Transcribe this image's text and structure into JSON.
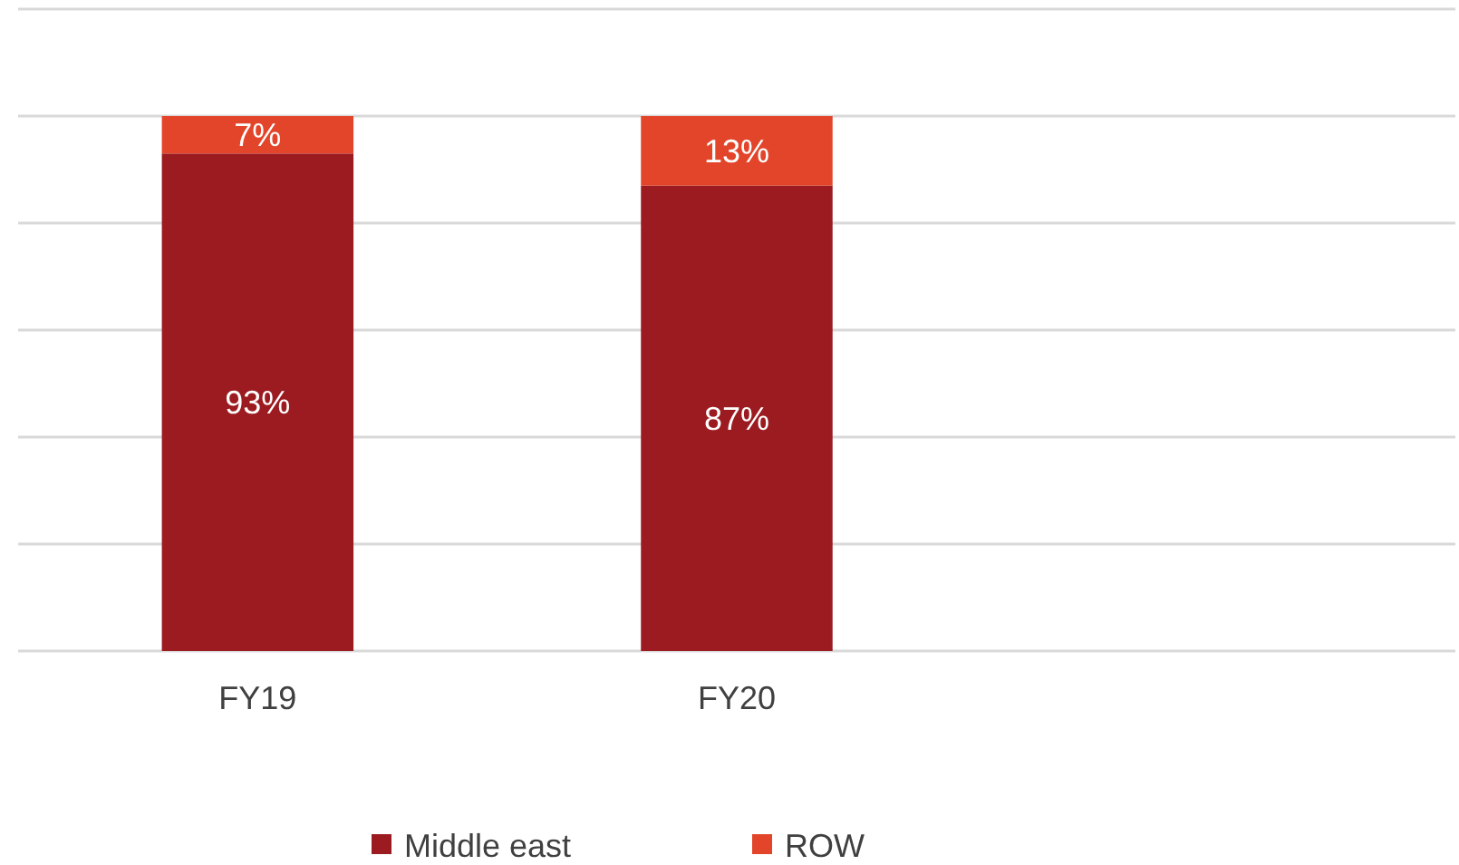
{
  "chart_data": {
    "type": "bar",
    "stacked": true,
    "categories": [
      "FY19",
      "FY20",
      null
    ],
    "series": [
      {
        "name": "Middle east",
        "color": "#9b1b20",
        "values": [
          93,
          87,
          null
        ],
        "value_labels": [
          "93%",
          "87%",
          null
        ]
      },
      {
        "name": "ROW",
        "color": "#e2452a",
        "values": [
          7,
          13,
          null
        ],
        "value_labels": [
          "7%",
          "13%",
          null
        ]
      }
    ],
    "ylim": [
      0,
      120
    ],
    "yticks": [
      {
        "value": 0,
        "label": null
      },
      {
        "value": 20,
        "label": null
      },
      {
        "value": 40,
        "label": null
      },
      {
        "value": 60,
        "label": null
      },
      {
        "value": 80,
        "label": null
      },
      {
        "value": 100,
        "label": null
      },
      {
        "value": 120,
        "label": null
      }
    ],
    "grid": "y",
    "legend": "bottom",
    "tick_labels": "x"
  }
}
